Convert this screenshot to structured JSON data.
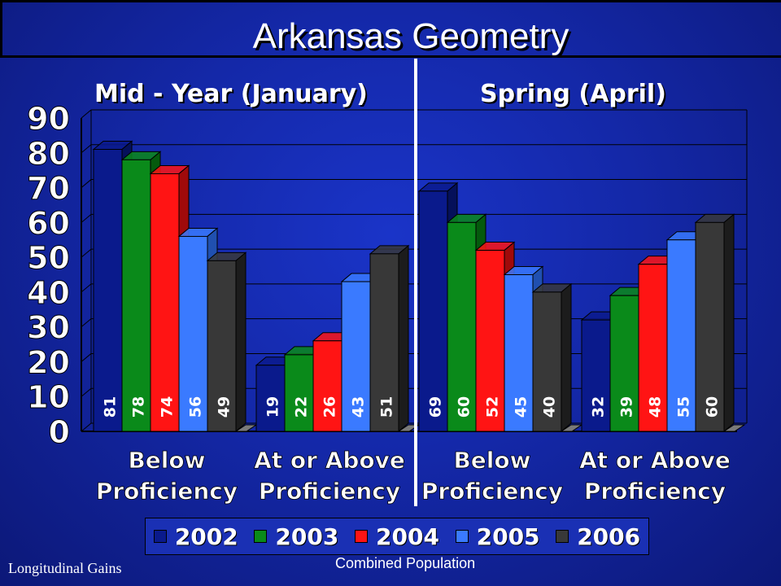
{
  "chart_data": {
    "type": "bar",
    "title": "Arkansas Geometry",
    "panels": [
      {
        "subtitle": "Mid - Year (January)",
        "categories": [
          [
            "Below",
            "Proficiency"
          ],
          [
            "At or Above",
            "Proficiency"
          ]
        ],
        "series": [
          {
            "name": "2002",
            "values": [
              81,
              19
            ]
          },
          {
            "name": "2003",
            "values": [
              78,
              22
            ]
          },
          {
            "name": "2004",
            "values": [
              74,
              26
            ]
          },
          {
            "name": "2005",
            "values": [
              56,
              43
            ]
          },
          {
            "name": "2006",
            "values": [
              49,
              51
            ]
          }
        ]
      },
      {
        "subtitle": "Spring (April)",
        "categories": [
          [
            "Below",
            "Proficiency"
          ],
          [
            "At or Above",
            "Proficiency"
          ]
        ],
        "series": [
          {
            "name": "2002",
            "values": [
              69,
              32
            ]
          },
          {
            "name": "2003",
            "values": [
              60,
              39
            ]
          },
          {
            "name": "2004",
            "values": [
              52,
              48
            ]
          },
          {
            "name": "2005",
            "values": [
              45,
              55
            ]
          },
          {
            "name": "2006",
            "values": [
              40,
              60
            ]
          }
        ]
      }
    ],
    "yticks": [
      "0",
      "10",
      "20",
      "30",
      "40",
      "50",
      "60",
      "70",
      "80",
      "90"
    ],
    "ylim": [
      0,
      90
    ],
    "grid": true,
    "legend_position": "bottom",
    "series_colors": [
      "#0a1a8c",
      "#0a8a1a",
      "#ff1414",
      "#3a7aff",
      "#383838"
    ],
    "series_side_colors": [
      "#05105a",
      "#055a0d",
      "#a00a0a",
      "#2050b0",
      "#1c1c1c"
    ],
    "label_colors": [
      "#ffffff",
      "#ffffff",
      "#ffffff",
      "#ffffff",
      "#ffffff"
    ]
  },
  "footer": {
    "left": "Longitudinal Gains",
    "center": "Combined Population"
  }
}
